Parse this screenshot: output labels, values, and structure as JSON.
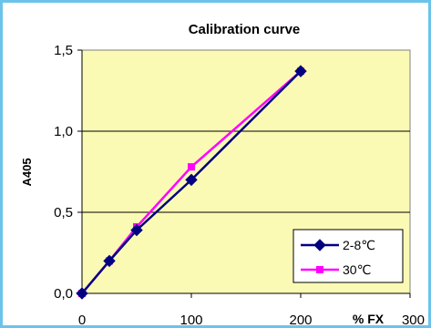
{
  "chart_data": {
    "type": "line",
    "title": "Calibration curve",
    "xlabel": "% FX",
    "ylabel": "A405",
    "xlim": [
      0,
      300
    ],
    "ylim": [
      0,
      1.5
    ],
    "x_ticks": [
      "0",
      "100",
      "200",
      "300"
    ],
    "y_ticks": [
      "0,0",
      "0,5",
      "1,0",
      "1,5"
    ],
    "grid": "horizontal",
    "legend": "bottom-right",
    "series": [
      {
        "name": "2-8℃",
        "color": "#000080",
        "marker": "diamond",
        "x": [
          0,
          25,
          50,
          100,
          200
        ],
        "y": [
          0.0,
          0.2,
          0.39,
          0.7,
          1.37
        ]
      },
      {
        "name": "30℃",
        "color": "#ff00ff",
        "marker": "square",
        "x": [
          0,
          25,
          50,
          100,
          200
        ],
        "y": [
          0.0,
          0.2,
          0.41,
          0.78,
          1.37
        ]
      }
    ]
  },
  "colors": {
    "background": "#ffffff",
    "border": "#6cc3ea",
    "plot_area": "#fafab4"
  }
}
